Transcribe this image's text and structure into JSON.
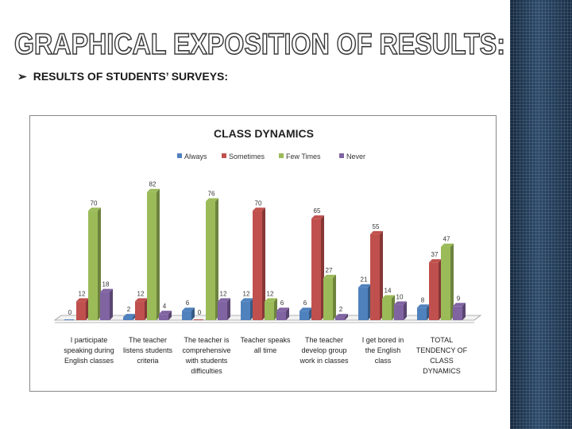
{
  "slide": {
    "title": "GRAPHICAL EXPOSITION OF RESULTS:",
    "subtitle": "RESULTS OF STUDENTS’ SURVEYS:",
    "bullet_icon": "arrow-bullet-icon"
  },
  "colors": {
    "always": "#4f81bd",
    "sometimes": "#c0504d",
    "few_times": "#9bbb59",
    "never": "#8064a2",
    "sidebar": "#1f3550"
  },
  "chart_data": {
    "type": "bar",
    "title": "CLASS DYNAMICS",
    "xlabel": "",
    "ylabel": "",
    "ylim": [
      0,
      90
    ],
    "grid": false,
    "legend_position": "top",
    "categories": [
      "I participate speaking during English classes",
      "The teacher listens students criteria",
      "The teacher is comprehensive with students difficulties",
      "Teacher speaks all time",
      "The teacher develop group work in classes",
      "I get bored in the English class",
      "TOTAL TENDENCY OF CLASS DYNAMICS"
    ],
    "category_lines": [
      [
        "I participate",
        "speaking during",
        "English classes"
      ],
      [
        "The teacher",
        "listens students",
        "criteria"
      ],
      [
        "The teacher is",
        "comprehensive",
        "with students",
        "difficulties"
      ],
      [
        "Teacher speaks",
        "all time"
      ],
      [
        "The teacher",
        "develop group",
        "work in classes"
      ],
      [
        "I get bored in",
        "the English",
        "class"
      ],
      [
        "TOTAL",
        "TENDENCY OF",
        "CLASS",
        "DYNAMICS"
      ]
    ],
    "series": [
      {
        "name": "Always",
        "color": "#4f81bd",
        "values": [
          0,
          2,
          6,
          12,
          6,
          21,
          8
        ]
      },
      {
        "name": "Sometimes",
        "color": "#c0504d",
        "values": [
          12,
          12,
          0,
          70,
          65,
          55,
          37
        ]
      },
      {
        "name": "Few Times",
        "color": "#9bbb59",
        "values": [
          70,
          82,
          76,
          12,
          27,
          14,
          47
        ]
      },
      {
        "name": "Never",
        "color": "#8064a2",
        "values": [
          18,
          4,
          12,
          6,
          2,
          10,
          9
        ]
      }
    ]
  }
}
